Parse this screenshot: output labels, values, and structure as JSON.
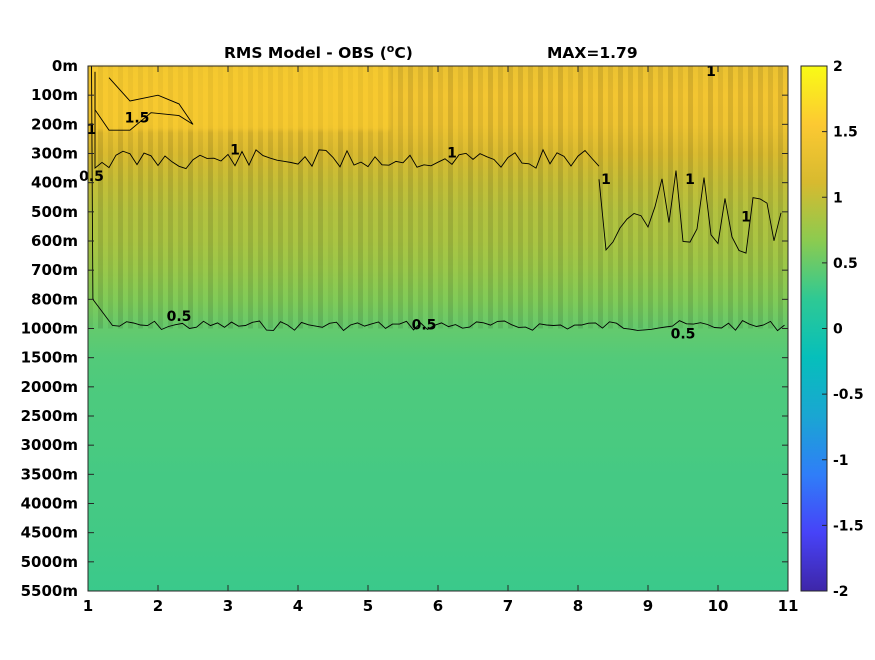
{
  "chart_data": {
    "type": "heatmap",
    "title": "RMS Model - OBS (",
    "title_superscript": "o",
    "title_unit_suffix": "C)",
    "annotation": "MAX=1.79",
    "x_ticks": [
      "1",
      "2",
      "3",
      "4",
      "5",
      "6",
      "7",
      "8",
      "9",
      "10",
      "11"
    ],
    "xlim": [
      1,
      11
    ],
    "y_ticks": [
      "0m",
      "100m",
      "200m",
      "300m",
      "400m",
      "500m",
      "600m",
      "700m",
      "800m",
      "1000m",
      "1500m",
      "2000m",
      "2500m",
      "3000m",
      "3500m",
      "4000m",
      "4500m",
      "5000m",
      "5500m"
    ],
    "colorbar": {
      "ticks": [
        "2",
        "1.5",
        "1",
        "0.5",
        "0",
        "-0.5",
        "-1",
        "-1.5",
        "-2"
      ],
      "range": [
        -2,
        2
      ],
      "colormap": [
        "#3e26a8",
        "#4743f8",
        "#2f7ef8",
        "#1aa6d2",
        "#06bfbb",
        "#2ec994",
        "#8bcb50",
        "#d7ba2f",
        "#fcc932",
        "#f9fb15"
      ]
    },
    "contour_levels": [
      "0.5",
      "1",
      "1.5"
    ],
    "contour_labels": [
      {
        "text": "1.5",
        "xi": 1.7,
        "yi": 1.8
      },
      {
        "text": "1",
        "xi": 3.1,
        "yi": 2.9
      },
      {
        "text": "1",
        "xi": 6.2,
        "yi": 3.0
      },
      {
        "text": "1",
        "xi": 9.9,
        "yi": 0.2
      },
      {
        "text": "1",
        "xi": 8.4,
        "yi": 3.9
      },
      {
        "text": "1",
        "xi": 9.6,
        "yi": 3.9
      },
      {
        "text": "1",
        "xi": 10.4,
        "yi": 5.2
      },
      {
        "text": "0.5",
        "xi": 2.3,
        "yi": 8.6
      },
      {
        "text": "0.5",
        "xi": 5.8,
        "yi": 8.9
      },
      {
        "text": "0.5",
        "xi": 9.5,
        "yi": 9.2
      },
      {
        "text": "1",
        "xi": 1.05,
        "yi": 2.2
      },
      {
        "text": "0.5",
        "xi": 1.05,
        "yi": 3.8
      }
    ],
    "depth_profile": [
      {
        "yi": 0,
        "v": 1.35
      },
      {
        "yi": 1,
        "v": 1.45
      },
      {
        "yi": 2,
        "v": 1.4
      },
      {
        "yi": 3,
        "v": 1.15
      },
      {
        "yi": 4,
        "v": 1.0
      },
      {
        "yi": 5,
        "v": 0.9
      },
      {
        "yi": 6,
        "v": 0.85
      },
      {
        "yi": 7,
        "v": 0.75
      },
      {
        "yi": 8,
        "v": 0.62
      },
      {
        "yi": 9,
        "v": 0.48
      },
      {
        "yi": 10,
        "v": 0.4
      },
      {
        "yi": 11,
        "v": 0.37
      },
      {
        "yi": 12,
        "v": 0.36
      },
      {
        "yi": 13,
        "v": 0.35
      },
      {
        "yi": 14,
        "v": 0.33
      },
      {
        "yi": 15,
        "v": 0.33
      },
      {
        "yi": 16,
        "v": 0.32
      },
      {
        "yi": 17,
        "v": 0.3
      },
      {
        "yi": 18,
        "v": 0.28
      }
    ]
  }
}
